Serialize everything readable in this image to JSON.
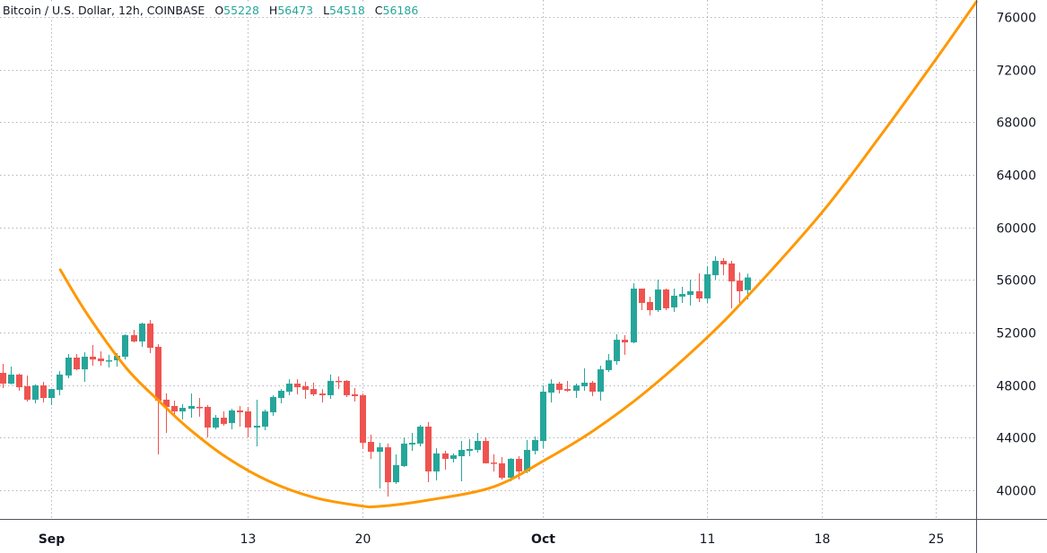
{
  "header": {
    "symbol_title": "Bitcoin / U.S. Dollar, 12h, COINBASE",
    "ohlc": [
      {
        "key": "O",
        "value": "55228"
      },
      {
        "key": "H",
        "value": "56473"
      },
      {
        "key": "L",
        "value": "54518"
      },
      {
        "key": "C",
        "value": "56186"
      }
    ]
  },
  "colors": {
    "up": "#26a69a",
    "down": "#ef5350",
    "curve": "#ff9800",
    "grid": "#b2b5be",
    "axis_line": "#50535e",
    "text": "#131722"
  },
  "chart_data": {
    "type": "candlestick",
    "interval": "12h",
    "grid": true,
    "y_axis": {
      "position": "right",
      "range": [
        37000,
        77500
      ],
      "ticks": [
        40000,
        44000,
        48000,
        52000,
        56000,
        60000,
        64000,
        68000,
        72000,
        76000
      ]
    },
    "x_axis": {
      "ticks": [
        {
          "label": "Sep",
          "date": "Sep 1 00:00",
          "bold": true
        },
        {
          "label": "13",
          "date": "Sep 13 00:00"
        },
        {
          "label": "20",
          "date": "Sep 20 00:00"
        },
        {
          "label": "Oct",
          "date": "Oct 1 00:00",
          "bold": true
        },
        {
          "label": "11",
          "date": "Oct 11 00:00"
        },
        {
          "label": "18",
          "date": "Oct 18 00:00"
        },
        {
          "label": "25",
          "date": "Oct 25 00:00"
        }
      ]
    },
    "candles_format": [
      "time",
      "open",
      "high",
      "low",
      "close"
    ],
    "candles": [
      [
        "Aug 29 00:00",
        48930,
        49610,
        47770,
        48110
      ],
      [
        "Aug 29 12:00",
        48110,
        49410,
        48050,
        48800
      ],
      [
        "Aug 30 00:00",
        48800,
        48860,
        47570,
        47840
      ],
      [
        "Aug 30 12:00",
        47910,
        48730,
        46750,
        46890
      ],
      [
        "Aug 31 00:00",
        46890,
        48050,
        46610,
        47980
      ],
      [
        "Aug 31 12:00",
        47980,
        48250,
        46680,
        47020
      ],
      [
        "Sep 1 00:00",
        47020,
        47700,
        46480,
        47700
      ],
      [
        "Sep 1 12:00",
        47640,
        49070,
        47230,
        48800
      ],
      [
        "Sep 2 00:00",
        48730,
        50360,
        48520,
        50090
      ],
      [
        "Sep 2 12:00",
        50090,
        50360,
        49140,
        49200
      ],
      [
        "Sep 3 00:00",
        49200,
        50500,
        48250,
        50160
      ],
      [
        "Sep 3 12:00",
        50160,
        51050,
        49480,
        49950
      ],
      [
        "Sep 4 00:00",
        50020,
        50570,
        49480,
        49820
      ],
      [
        "Sep 4 12:00",
        49820,
        50300,
        49340,
        49890
      ],
      [
        "Sep 5 00:00",
        49890,
        50430,
        49410,
        50230
      ],
      [
        "Sep 5 12:00",
        50160,
        51860,
        49950,
        51800
      ],
      [
        "Sep 6 00:00",
        51800,
        52200,
        51250,
        51320
      ],
      [
        "Sep 6 12:00",
        51320,
        52750,
        50910,
        52680
      ],
      [
        "Sep 7 00:00",
        52680,
        52950,
        50430,
        50840
      ],
      [
        "Sep 7 12:00",
        50910,
        51110,
        42730,
        46820
      ],
      [
        "Sep 8 00:00",
        46890,
        47360,
        44360,
        46340
      ],
      [
        "Sep 8 12:00",
        46410,
        46820,
        45590,
        46000
      ],
      [
        "Sep 9 00:00",
        46000,
        46550,
        45390,
        46270
      ],
      [
        "Sep 9 12:00",
        46200,
        47360,
        45520,
        46410
      ],
      [
        "Sep 10 00:00",
        46340,
        47020,
        45590,
        46320
      ],
      [
        "Sep 10 12:00",
        46340,
        46480,
        44020,
        44770
      ],
      [
        "Sep 11 00:00",
        44770,
        45730,
        44640,
        45520
      ],
      [
        "Sep 11 12:00",
        45520,
        46000,
        44910,
        45050
      ],
      [
        "Sep 12 00:00",
        45110,
        46200,
        44640,
        46070
      ],
      [
        "Sep 12 12:00",
        46070,
        46410,
        44840,
        45930
      ],
      [
        "Sep 13 00:00",
        46000,
        46340,
        44020,
        44770
      ],
      [
        "Sep 13 12:00",
        44770,
        46890,
        43340,
        44910
      ],
      [
        "Sep 14 00:00",
        44840,
        46140,
        44570,
        46000
      ],
      [
        "Sep 14 12:00",
        45930,
        47230,
        45660,
        47090
      ],
      [
        "Sep 15 00:00",
        47020,
        47700,
        46610,
        47570
      ],
      [
        "Sep 15 12:00",
        47500,
        48450,
        47230,
        48110
      ],
      [
        "Sep 16 00:00",
        48110,
        48450,
        47300,
        47840
      ],
      [
        "Sep 16 12:00",
        47910,
        48250,
        46950,
        47640
      ],
      [
        "Sep 17 00:00",
        47700,
        48180,
        47160,
        47300
      ],
      [
        "Sep 17 12:00",
        47360,
        47700,
        46680,
        47230
      ],
      [
        "Sep 18 00:00",
        47230,
        48800,
        46950,
        48320
      ],
      [
        "Sep 18 12:00",
        48320,
        48660,
        47700,
        48290
      ],
      [
        "Sep 19 00:00",
        48320,
        48390,
        47090,
        47230
      ],
      [
        "Sep 19 12:00",
        47300,
        47770,
        46750,
        47160
      ],
      [
        "Sep 20 00:00",
        47230,
        47360,
        43140,
        43610
      ],
      [
        "Sep 20 12:00",
        43680,
        44230,
        42390,
        42930
      ],
      [
        "Sep 21 00:00",
        42930,
        43610,
        40140,
        43270
      ],
      [
        "Sep 21 12:00",
        43270,
        43550,
        39520,
        40610
      ],
      [
        "Sep 22 00:00",
        40610,
        42730,
        40480,
        41910
      ],
      [
        "Sep 22 12:00",
        41840,
        44020,
        41770,
        43550
      ],
      [
        "Sep 23 00:00",
        43480,
        44360,
        43000,
        43610
      ],
      [
        "Sep 23 12:00",
        43550,
        44980,
        43340,
        44840
      ],
      [
        "Sep 24 00:00",
        44840,
        45180,
        40610,
        41430
      ],
      [
        "Sep 24 12:00",
        41430,
        43200,
        40750,
        42800
      ],
      [
        "Sep 25 00:00",
        42800,
        43000,
        41570,
        42390
      ],
      [
        "Sep 25 12:00",
        42390,
        42800,
        42110,
        42660
      ],
      [
        "Sep 26 00:00",
        42590,
        43750,
        40680,
        43070
      ],
      [
        "Sep 26 12:00",
        43000,
        43890,
        42590,
        43140
      ],
      [
        "Sep 27 00:00",
        43070,
        44360,
        42860,
        43750
      ],
      [
        "Sep 27 12:00",
        43750,
        44020,
        42040,
        42050
      ],
      [
        "Sep 28 00:00",
        42110,
        42730,
        41430,
        42050
      ],
      [
        "Sep 28 12:00",
        42050,
        42520,
        40820,
        40950
      ],
      [
        "Sep 29 00:00",
        40950,
        42450,
        40680,
        42390
      ],
      [
        "Sep 29 12:00",
        42390,
        42590,
        40820,
        41430
      ],
      [
        "Sep 30 00:00",
        41430,
        43820,
        41300,
        43070
      ],
      [
        "Sep 30 12:00",
        43000,
        44090,
        42730,
        43820
      ],
      [
        "Oct 1 00:00",
        43750,
        47980,
        43200,
        47500
      ],
      [
        "Oct 1 12:00",
        47430,
        48450,
        46680,
        48110
      ],
      [
        "Oct 2 00:00",
        48110,
        48250,
        47360,
        47640
      ],
      [
        "Oct 2 12:00",
        47700,
        48320,
        47500,
        47570
      ],
      [
        "Oct 3 00:00",
        47570,
        48110,
        47020,
        47980
      ],
      [
        "Oct 3 12:00",
        47910,
        49270,
        47570,
        48180
      ],
      [
        "Oct 4 00:00",
        48180,
        48320,
        47160,
        47500
      ],
      [
        "Oct 4 12:00",
        47500,
        49480,
        46820,
        49200
      ],
      [
        "Oct 5 00:00",
        49140,
        50360,
        49000,
        49890
      ],
      [
        "Oct 5 12:00",
        49820,
        51860,
        49550,
        51450
      ],
      [
        "Oct 6 00:00",
        51450,
        51800,
        50300,
        51250
      ],
      [
        "Oct 6 12:00",
        51250,
        55750,
        51180,
        55340
      ],
      [
        "Oct 7 00:00",
        55340,
        55340,
        53700,
        54250
      ],
      [
        "Oct 7 12:00",
        54320,
        54730,
        53300,
        53700
      ],
      [
        "Oct 8 00:00",
        53700,
        56020,
        53570,
        55270
      ],
      [
        "Oct 8 12:00",
        55270,
        55340,
        53700,
        53840
      ],
      [
        "Oct 9 00:00",
        53910,
        55340,
        53570,
        54800
      ],
      [
        "Oct 9 12:00",
        54730,
        55480,
        54250,
        54930
      ],
      [
        "Oct 10 00:00",
        54860,
        56020,
        54050,
        55140
      ],
      [
        "Oct 10 12:00",
        55140,
        56500,
        54320,
        54590
      ],
      [
        "Oct 11 00:00",
        54590,
        57050,
        54250,
        56430
      ],
      [
        "Oct 11 12:00",
        56360,
        57800,
        56020,
        57450
      ],
      [
        "Oct 12 00:00",
        57450,
        57660,
        56360,
        57180
      ],
      [
        "Oct 12 12:00",
        57250,
        57450,
        53840,
        55890
      ],
      [
        "Oct 13 00:00",
        55950,
        56570,
        54110,
        55140
      ],
      [
        "Oct 13 12:00",
        55228,
        56473,
        54518,
        56186
      ]
    ],
    "curve": [
      [
        "Sep 1 13:00",
        56770
      ],
      [
        "Sep 3 04:00",
        53430
      ],
      [
        "Sep 5 13:00",
        49340
      ],
      [
        "Sep 7 13:00",
        46820
      ],
      [
        "Sep 9 09:00",
        44700
      ],
      [
        "Sep 11 16:00",
        42520
      ],
      [
        "Sep 14 07:00",
        40680
      ],
      [
        "Sep 17 01:00",
        39450
      ],
      [
        "Sep 19 18:00",
        38840
      ],
      [
        "Sep 21 00:00",
        38770
      ],
      [
        "Sep 24 00:00",
        39250
      ],
      [
        "Sep 28 00:00",
        40270
      ],
      [
        "Oct 1 06:00",
        42390
      ],
      [
        "Oct 4 03:00",
        44570
      ],
      [
        "Oct 7 07:00",
        47500
      ],
      [
        "Oct 11 00:00",
        51590
      ],
      [
        "Oct 13 21:00",
        55270
      ],
      [
        "Oct 18 03:00",
        61270
      ],
      [
        "Oct 21 13:00",
        66860
      ],
      [
        "Oct 25 00:00",
        72800
      ],
      [
        "Oct 27 11:00",
        77160
      ]
    ]
  }
}
